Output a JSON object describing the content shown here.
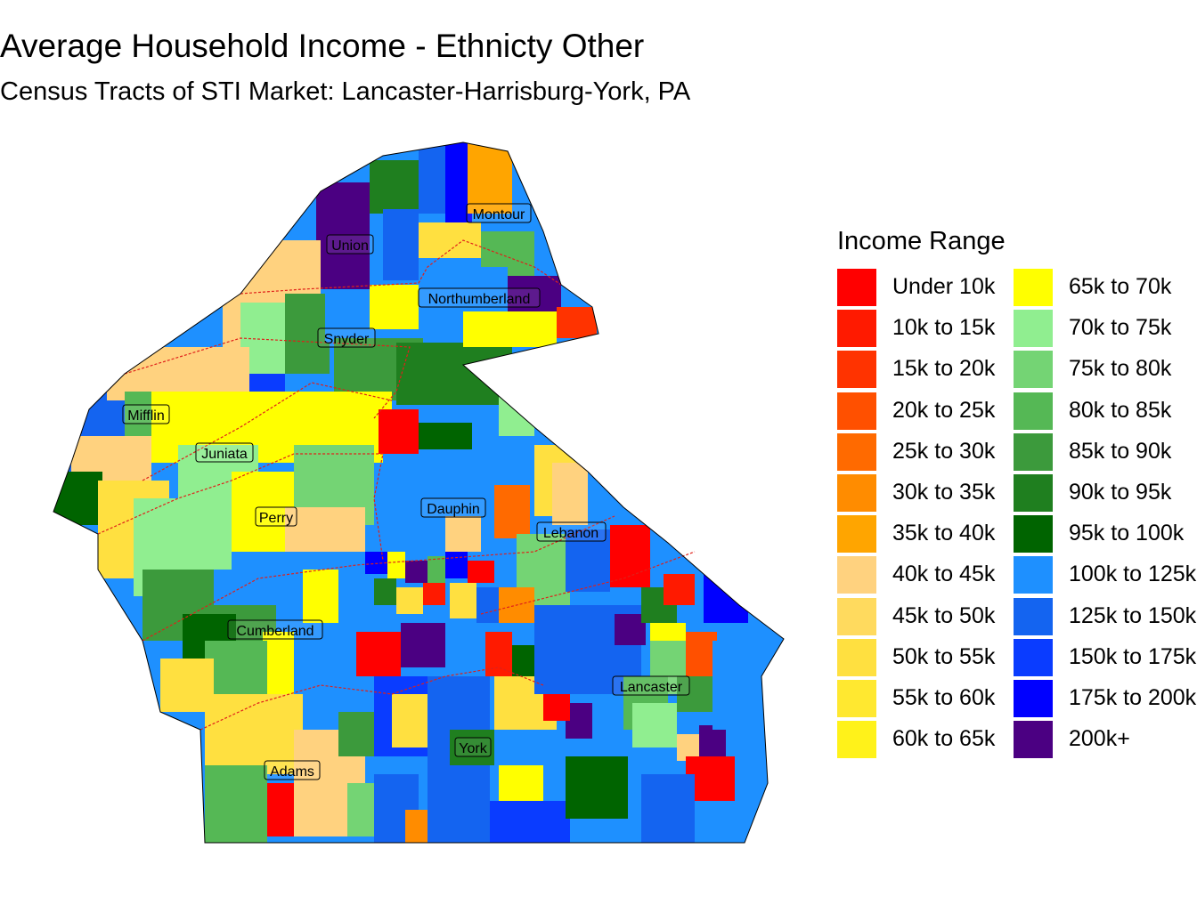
{
  "title": "Average Household Income - Ethnicty Other",
  "subtitle": "Census Tracts of STI Market: Lancaster-Harrisburg-York, PA",
  "legend": {
    "title": "Income Range",
    "items": [
      {
        "label": "Under 10k",
        "color": "#FF0000"
      },
      {
        "label": "10k to 15k",
        "color": "#FF1A00"
      },
      {
        "label": "15k to 20k",
        "color": "#FF3300"
      },
      {
        "label": "20k to 25k",
        "color": "#FF5000"
      },
      {
        "label": "25k to 30k",
        "color": "#FF6A00"
      },
      {
        "label": "30k to 35k",
        "color": "#FF8C00"
      },
      {
        "label": "35k to 40k",
        "color": "#FFA500"
      },
      {
        "label": "40k to 45k",
        "color": "#FFD27F"
      },
      {
        "label": "45k to 50k",
        "color": "#FFDA5E"
      },
      {
        "label": "50k to 55k",
        "color": "#FFE040"
      },
      {
        "label": "55k to 60k",
        "color": "#FFE830"
      },
      {
        "label": "60k to 65k",
        "color": "#FFF21A"
      },
      {
        "label": "65k to 70k",
        "color": "#FFFF00"
      },
      {
        "label": "70k to 75k",
        "color": "#90EE90"
      },
      {
        "label": "75k to 80k",
        "color": "#74D474"
      },
      {
        "label": "80k to 85k",
        "color": "#55B855"
      },
      {
        "label": "85k to 90k",
        "color": "#3C9A3C"
      },
      {
        "label": "90k to 95k",
        "color": "#1F7F1F"
      },
      {
        "label": "95k to 100k",
        "color": "#006400"
      },
      {
        "label": "100k to 125k",
        "color": "#1E90FF"
      },
      {
        "label": "125k to 150k",
        "color": "#1464F0"
      },
      {
        "label": "150k to 175k",
        "color": "#0A3CFF"
      },
      {
        "label": "175k to 200k",
        "color": "#0000FF"
      },
      {
        "label": "200k+",
        "color": "#4B0082"
      }
    ]
  },
  "counties": [
    "Montour",
    "Union",
    "Northumberland",
    "Snyder",
    "Mifflin",
    "Juniata",
    "Perry",
    "Dauphin",
    "Lebanon",
    "Cumberland",
    "Lancaster",
    "York",
    "Adams"
  ],
  "map_style": {
    "county_border_color": "#E0201A",
    "outline_color": "#000000"
  }
}
